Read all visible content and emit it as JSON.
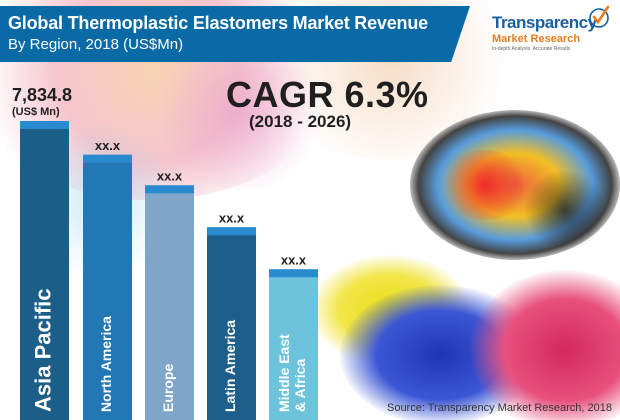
{
  "title": {
    "line1": "Global Thermoplastic Elastomers Market Revenue",
    "line2": "By Region, 2018 (US$Mn)"
  },
  "logo": {
    "brand": "Transparency",
    "sub": "Market Research",
    "tagline": "In-depth Analysis. Accurate Results",
    "brand_color": "#1a5fa0",
    "sub_color": "#e87d1e",
    "icon": "checkmark-icon"
  },
  "cagr": {
    "value": "CAGR 6.3%",
    "period": "(2018 - 2026)"
  },
  "source": "Source: Transparency Market Research, 2018",
  "colors": {
    "banner": "#0a6aa5"
  },
  "chart_data": {
    "type": "bar",
    "categories": [
      "Asia Pacific",
      "North America",
      "Europe",
      "Latin America",
      "Middle East & Africa"
    ],
    "category_lines": [
      [
        "Asia Pacific"
      ],
      [
        "North America"
      ],
      [
        "Europe"
      ],
      [
        "Latin America"
      ],
      [
        "Middle East",
        "& Africa"
      ]
    ],
    "values": [
      7834.8,
      6950,
      6150,
      5050,
      3950
    ],
    "value_labels": [
      "7,834.8",
      "xx.x",
      "xx.x",
      "xx.x",
      "xx.x"
    ],
    "first_label_unit": "(US$ Mn)",
    "values_note": "Only Asia Pacific is labelled; other bar heights estimated from visual length",
    "ylim": [
      0,
      7834.8
    ],
    "bar_colors": [
      "#1b5e87",
      "#2278b4",
      "#7fa6c8",
      "#1d5f8a",
      "#6ec3dc"
    ],
    "cap_colors": [
      "#2a8ad0",
      "#2a8ad0",
      "#2a8ad0",
      "#2a8ad0",
      "#2a8ad0"
    ],
    "grid": false,
    "legend": "none"
  }
}
